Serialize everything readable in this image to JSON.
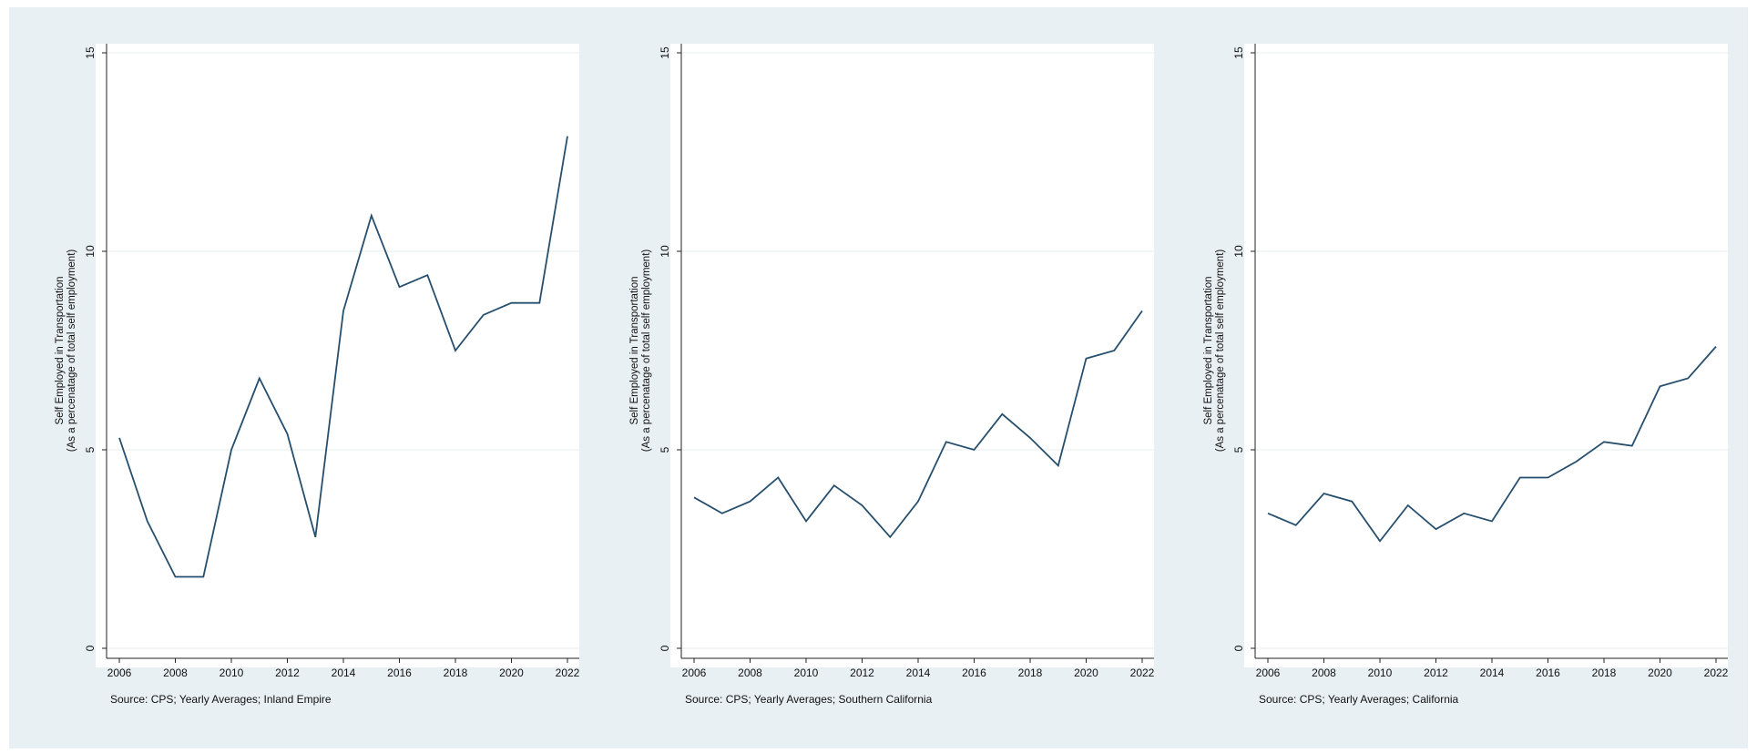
{
  "colors": {
    "figure_background": "#e9f0f3",
    "plot_background": "#ffffff",
    "grid": "#eaf0f2",
    "line": "#264f6e",
    "axis": "#222222"
  },
  "chart_data": [
    {
      "type": "line",
      "title": "",
      "xlabel": "",
      "ylabel": "Self Employed in Transportation",
      "ylabel2": "(As a percenatage of total self employment)",
      "note": "Source: CPS; Yearly Averages; Inland Empire",
      "xlim": [
        2006,
        2022
      ],
      "ylim": [
        0,
        15
      ],
      "xticks": [
        2006,
        2008,
        2010,
        2012,
        2014,
        2016,
        2018,
        2020,
        2022
      ],
      "yticks": [
        0,
        5,
        10,
        15
      ],
      "grid": true,
      "legend": "none",
      "series": [
        {
          "x": [
            2006,
            2007,
            2008,
            2009,
            2010,
            2011,
            2012,
            2013,
            2014,
            2015,
            2016,
            2017,
            2018,
            2019,
            2020,
            2021,
            2022
          ],
          "y": [
            5.3,
            3.2,
            1.8,
            1.8,
            5.0,
            6.8,
            5.4,
            2.8,
            8.5,
            10.9,
            9.1,
            9.4,
            7.5,
            8.4,
            8.7,
            8.7,
            12.9
          ]
        }
      ]
    },
    {
      "type": "line",
      "title": "",
      "xlabel": "",
      "ylabel": "Self Employed in Transportation",
      "ylabel2": "(As a percenatage of total self employment)",
      "note": "Source: CPS; Yearly Averages; Southern California",
      "xlim": [
        2006,
        2022
      ],
      "ylim": [
        0,
        15
      ],
      "xticks": [
        2006,
        2008,
        2010,
        2012,
        2014,
        2016,
        2018,
        2020,
        2022
      ],
      "yticks": [
        0,
        5,
        10,
        15
      ],
      "grid": true,
      "legend": "none",
      "series": [
        {
          "x": [
            2006,
            2007,
            2008,
            2009,
            2010,
            2011,
            2012,
            2013,
            2014,
            2015,
            2016,
            2017,
            2018,
            2019,
            2020,
            2021,
            2022
          ],
          "y": [
            3.8,
            3.4,
            3.7,
            4.3,
            3.2,
            4.1,
            3.6,
            2.8,
            3.7,
            5.2,
            5.0,
            5.9,
            5.3,
            4.6,
            7.3,
            7.5,
            8.5
          ]
        }
      ]
    },
    {
      "type": "line",
      "title": "",
      "xlabel": "",
      "ylabel": "Self Employed in Transportation",
      "ylabel2": "(As a percenatage of total self employment)",
      "note": "Source: CPS; Yearly Averages; California",
      "xlim": [
        2006,
        2022
      ],
      "ylim": [
        0,
        15
      ],
      "xticks": [
        2006,
        2008,
        2010,
        2012,
        2014,
        2016,
        2018,
        2020,
        2022
      ],
      "yticks": [
        0,
        5,
        10,
        15
      ],
      "grid": true,
      "legend": "none",
      "series": [
        {
          "x": [
            2006,
            2007,
            2008,
            2009,
            2010,
            2011,
            2012,
            2013,
            2014,
            2015,
            2016,
            2017,
            2018,
            2019,
            2020,
            2021,
            2022
          ],
          "y": [
            3.4,
            3.1,
            3.9,
            3.7,
            2.7,
            3.6,
            3.0,
            3.4,
            3.2,
            4.3,
            4.3,
            4.7,
            5.2,
            5.1,
            6.6,
            6.8,
            7.6
          ]
        }
      ]
    }
  ]
}
